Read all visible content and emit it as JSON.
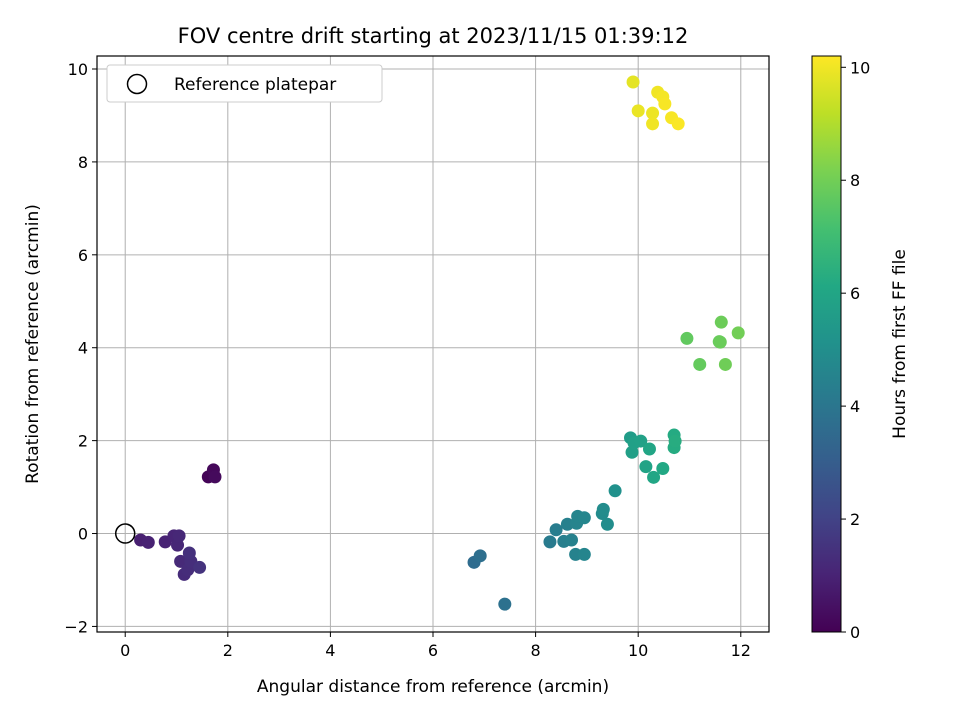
{
  "chart_data": {
    "type": "scatter",
    "title": "FOV centre drift starting at 2023/11/15 01:39:12",
    "xlabel": "Angular distance from reference (arcmin)",
    "ylabel": "Rotation from reference (arcmin)",
    "xlim": [
      -0.55,
      12.55
    ],
    "ylim": [
      -2.12,
      10.28
    ],
    "xticks": [
      0,
      2,
      4,
      6,
      8,
      10,
      12
    ],
    "yticks": [
      -2,
      0,
      2,
      4,
      6,
      8,
      10
    ],
    "grid": true,
    "legend": {
      "placement": "top-left",
      "entries": [
        "Reference platepar"
      ]
    },
    "reference_point": {
      "x": 0,
      "y": 0,
      "marker": "hollow-circle"
    },
    "colorbar": {
      "label": "Hours from first FF file",
      "range": [
        0,
        10.2
      ],
      "ticks": [
        0,
        2,
        4,
        6,
        8,
        10
      ],
      "colormap": "viridis"
    },
    "points": [
      {
        "x": 1.62,
        "y": 1.22,
        "c": 0.1
      },
      {
        "x": 1.72,
        "y": 1.37,
        "c": 0.2
      },
      {
        "x": 1.75,
        "y": 1.22,
        "c": 0.25
      },
      {
        "x": 0.3,
        "y": -0.14,
        "c": 0.9
      },
      {
        "x": 0.45,
        "y": -0.19,
        "c": 0.95
      },
      {
        "x": 0.78,
        "y": -0.18,
        "c": 1.0
      },
      {
        "x": 0.95,
        "y": -0.05,
        "c": 1.05
      },
      {
        "x": 1.02,
        "y": -0.25,
        "c": 1.1
      },
      {
        "x": 1.05,
        "y": -0.05,
        "c": 1.15
      },
      {
        "x": 1.08,
        "y": -0.6,
        "c": 1.2
      },
      {
        "x": 1.15,
        "y": -0.88,
        "c": 1.25
      },
      {
        "x": 1.22,
        "y": -0.78,
        "c": 1.3
      },
      {
        "x": 1.28,
        "y": -0.6,
        "c": 1.35
      },
      {
        "x": 1.25,
        "y": -0.42,
        "c": 1.4
      },
      {
        "x": 1.45,
        "y": -0.73,
        "c": 1.5
      },
      {
        "x": 6.8,
        "y": -0.62,
        "c": 3.6
      },
      {
        "x": 6.92,
        "y": -0.48,
        "c": 3.7
      },
      {
        "x": 7.4,
        "y": -1.52,
        "c": 3.8
      },
      {
        "x": 8.28,
        "y": -0.18,
        "c": 4.2
      },
      {
        "x": 8.4,
        "y": 0.08,
        "c": 4.3
      },
      {
        "x": 8.55,
        "y": -0.17,
        "c": 4.35
      },
      {
        "x": 8.62,
        "y": 0.2,
        "c": 4.4
      },
      {
        "x": 8.7,
        "y": -0.14,
        "c": 4.45
      },
      {
        "x": 8.78,
        "y": -0.45,
        "c": 4.5
      },
      {
        "x": 8.8,
        "y": 0.22,
        "c": 4.55
      },
      {
        "x": 8.82,
        "y": 0.37,
        "c": 4.6
      },
      {
        "x": 8.95,
        "y": -0.45,
        "c": 4.6
      },
      {
        "x": 8.95,
        "y": 0.34,
        "c": 4.65
      },
      {
        "x": 9.3,
        "y": 0.43,
        "c": 4.85
      },
      {
        "x": 9.32,
        "y": 0.52,
        "c": 4.9
      },
      {
        "x": 9.4,
        "y": 0.2,
        "c": 4.95
      },
      {
        "x": 9.55,
        "y": 0.92,
        "c": 5.1
      },
      {
        "x": 9.85,
        "y": 2.06,
        "c": 5.6
      },
      {
        "x": 9.88,
        "y": 1.75,
        "c": 5.7
      },
      {
        "x": 9.92,
        "y": 1.95,
        "c": 5.75
      },
      {
        "x": 10.05,
        "y": 1.99,
        "c": 5.8
      },
      {
        "x": 10.15,
        "y": 1.44,
        "c": 5.9
      },
      {
        "x": 10.22,
        "y": 1.82,
        "c": 6.0
      },
      {
        "x": 10.3,
        "y": 1.21,
        "c": 6.05
      },
      {
        "x": 10.48,
        "y": 1.4,
        "c": 6.1
      },
      {
        "x": 10.7,
        "y": 2.12,
        "c": 6.2
      },
      {
        "x": 10.7,
        "y": 1.85,
        "c": 6.25
      },
      {
        "x": 10.72,
        "y": 1.99,
        "c": 6.3
      },
      {
        "x": 10.95,
        "y": 4.2,
        "c": 7.7
      },
      {
        "x": 11.2,
        "y": 3.64,
        "c": 7.75
      },
      {
        "x": 11.58,
        "y": 4.13,
        "c": 7.8
      },
      {
        "x": 11.6,
        "y": 4.12,
        "c": 7.85
      },
      {
        "x": 11.62,
        "y": 4.55,
        "c": 7.9
      },
      {
        "x": 11.7,
        "y": 3.64,
        "c": 7.95
      },
      {
        "x": 11.95,
        "y": 4.32,
        "c": 8.0
      },
      {
        "x": 9.9,
        "y": 9.72,
        "c": 9.8
      },
      {
        "x": 10.0,
        "y": 9.1,
        "c": 9.9
      },
      {
        "x": 10.28,
        "y": 9.05,
        "c": 9.95
      },
      {
        "x": 10.28,
        "y": 8.82,
        "c": 10.0
      },
      {
        "x": 10.38,
        "y": 9.5,
        "c": 10.0
      },
      {
        "x": 10.48,
        "y": 9.4,
        "c": 10.05
      },
      {
        "x": 10.52,
        "y": 9.25,
        "c": 10.1
      },
      {
        "x": 10.65,
        "y": 8.95,
        "c": 10.1
      },
      {
        "x": 10.78,
        "y": 8.82,
        "c": 10.15
      }
    ]
  }
}
